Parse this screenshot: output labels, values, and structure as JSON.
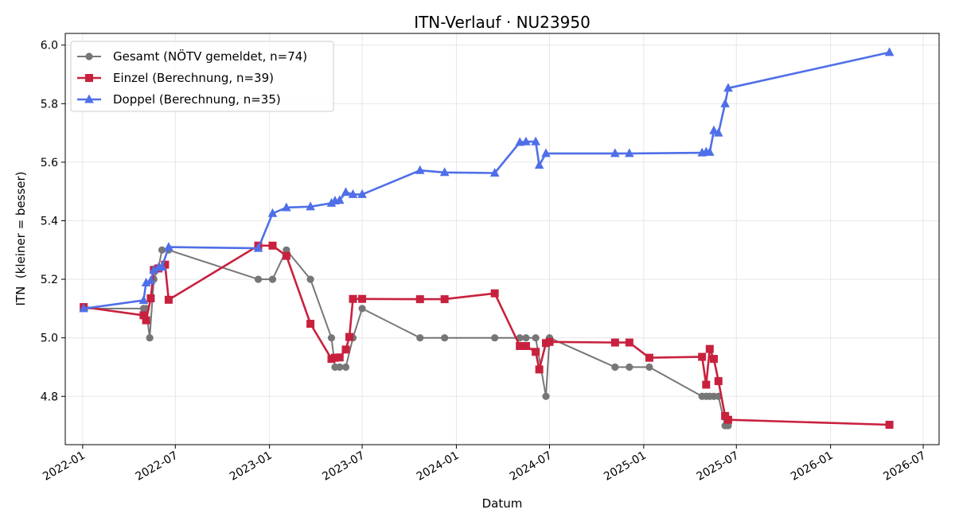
{
  "chart_data": {
    "type": "line",
    "title": "ITN-Verlauf · NU23950",
    "xlabel": "Datum",
    "ylabel": "ITN  (kleiner = besser)",
    "x_axis_type": "date",
    "xlim": [
      "2021-11-28",
      "2026-08-01"
    ],
    "ylim": [
      4.635,
      6.04
    ],
    "x_ticks": [
      "2022-01",
      "2022-07",
      "2023-01",
      "2023-07",
      "2024-01",
      "2024-07",
      "2025-01",
      "2025-07",
      "2026-01",
      "2026-07"
    ],
    "y_ticks": [
      4.8,
      5.0,
      5.2,
      5.4,
      5.6,
      5.8,
      6.0
    ],
    "grid": true,
    "legend_position": "top-left",
    "series": [
      {
        "name": "Gesamt (NÖTV gemeldet, n=74)",
        "color": "#444444",
        "marker": "circle",
        "points": [
          [
            "2022-01-03",
            5.1
          ],
          [
            "2022-04-30",
            5.1
          ],
          [
            "2022-05-05",
            5.1
          ],
          [
            "2022-05-12",
            5.0
          ],
          [
            "2022-05-20",
            5.2
          ],
          [
            "2022-05-29",
            5.24
          ],
          [
            "2022-06-05",
            5.3
          ],
          [
            "2022-06-18",
            5.3
          ],
          [
            "2022-12-10",
            5.2
          ],
          [
            "2023-01-07",
            5.2
          ],
          [
            "2023-02-03",
            5.3
          ],
          [
            "2023-03-22",
            5.2
          ],
          [
            "2023-05-02",
            5.0
          ],
          [
            "2023-05-09",
            4.9
          ],
          [
            "2023-05-18",
            4.9
          ],
          [
            "2023-05-30",
            4.9
          ],
          [
            "2023-06-13",
            5.0
          ],
          [
            "2023-07-01",
            5.1
          ],
          [
            "2023-10-22",
            5.0
          ],
          [
            "2023-12-09",
            5.0
          ],
          [
            "2024-03-16",
            5.0
          ],
          [
            "2024-05-04",
            5.0
          ],
          [
            "2024-05-16",
            5.0
          ],
          [
            "2024-06-04",
            5.0
          ],
          [
            "2024-06-24",
            4.8
          ],
          [
            "2024-07-01",
            5.0
          ],
          [
            "2024-11-06",
            4.9
          ],
          [
            "2024-12-04",
            4.9
          ],
          [
            "2025-01-12",
            4.9
          ],
          [
            "2025-04-25",
            4.8
          ],
          [
            "2025-05-03",
            4.8
          ],
          [
            "2025-05-10",
            4.8
          ],
          [
            "2025-05-18",
            4.8
          ],
          [
            "2025-05-27",
            4.8
          ],
          [
            "2025-06-09",
            4.7
          ],
          [
            "2025-06-15",
            4.7
          ]
        ]
      },
      {
        "name": "Einzel (Berechnung, n=39)",
        "color": "#C8213E",
        "marker": "square",
        "points": [
          [
            "2022-01-03",
            5.105
          ],
          [
            "2022-04-30",
            5.077
          ],
          [
            "2022-05-05",
            5.06
          ],
          [
            "2022-05-14",
            5.135
          ],
          [
            "2022-05-20",
            5.232
          ],
          [
            "2022-05-29",
            5.237
          ],
          [
            "2022-06-11",
            5.25
          ],
          [
            "2022-06-18",
            5.13
          ],
          [
            "2022-12-10",
            5.315
          ],
          [
            "2023-01-07",
            5.315
          ],
          [
            "2023-02-03",
            5.28
          ],
          [
            "2023-03-22",
            5.048
          ],
          [
            "2023-05-02",
            4.928
          ],
          [
            "2023-05-09",
            4.932
          ],
          [
            "2023-05-18",
            4.933
          ],
          [
            "2023-05-30",
            4.96
          ],
          [
            "2023-06-06",
            5.003
          ],
          [
            "2023-06-13",
            5.133
          ],
          [
            "2023-07-01",
            5.133
          ],
          [
            "2023-10-22",
            5.132
          ],
          [
            "2023-12-09",
            5.132
          ],
          [
            "2024-03-16",
            5.152
          ],
          [
            "2024-05-04",
            4.972
          ],
          [
            "2024-05-16",
            4.972
          ],
          [
            "2024-06-04",
            4.952
          ],
          [
            "2024-06-11",
            4.892
          ],
          [
            "2024-06-24",
            4.982
          ],
          [
            "2024-07-01",
            4.986
          ],
          [
            "2024-11-06",
            4.984
          ],
          [
            "2024-12-04",
            4.984
          ],
          [
            "2025-01-12",
            4.932
          ],
          [
            "2025-04-25",
            4.935
          ],
          [
            "2025-05-03",
            4.84
          ],
          [
            "2025-05-10",
            4.962
          ],
          [
            "2025-05-18",
            4.928
          ],
          [
            "2025-05-27",
            4.852
          ],
          [
            "2025-06-09",
            4.733
          ],
          [
            "2025-06-15",
            4.72
          ],
          [
            "2026-04-26",
            4.703
          ]
        ]
      },
      {
        "name": "Doppel (Berechnung, n=35)",
        "color": "#4F6FE8",
        "marker": "triangle",
        "points": [
          [
            "2022-01-03",
            5.1
          ],
          [
            "2022-04-30",
            5.128
          ],
          [
            "2022-05-05",
            5.188
          ],
          [
            "2022-05-14",
            5.195
          ],
          [
            "2022-05-20",
            5.232
          ],
          [
            "2022-05-29",
            5.24
          ],
          [
            "2022-06-05",
            5.242
          ],
          [
            "2022-06-18",
            5.31
          ],
          [
            "2022-12-10",
            5.306
          ],
          [
            "2023-01-07",
            5.425
          ],
          [
            "2023-02-03",
            5.445
          ],
          [
            "2023-03-22",
            5.448
          ],
          [
            "2023-05-02",
            5.46
          ],
          [
            "2023-05-09",
            5.468
          ],
          [
            "2023-05-18",
            5.47
          ],
          [
            "2023-05-30",
            5.497
          ],
          [
            "2023-06-13",
            5.49
          ],
          [
            "2023-07-01",
            5.49
          ],
          [
            "2023-10-22",
            5.572
          ],
          [
            "2023-12-09",
            5.565
          ],
          [
            "2024-03-16",
            5.563
          ],
          [
            "2024-05-04",
            5.668
          ],
          [
            "2024-05-16",
            5.67
          ],
          [
            "2024-06-04",
            5.67
          ],
          [
            "2024-06-11",
            5.59
          ],
          [
            "2024-06-24",
            5.63
          ],
          [
            "2024-11-06",
            5.63
          ],
          [
            "2024-12-04",
            5.63
          ],
          [
            "2025-04-25",
            5.632
          ],
          [
            "2025-05-03",
            5.635
          ],
          [
            "2025-05-10",
            5.634
          ],
          [
            "2025-05-18",
            5.708
          ],
          [
            "2025-05-27",
            5.7
          ],
          [
            "2025-06-09",
            5.8
          ],
          [
            "2025-06-15",
            5.853
          ],
          [
            "2026-04-26",
            5.975
          ]
        ]
      }
    ]
  }
}
